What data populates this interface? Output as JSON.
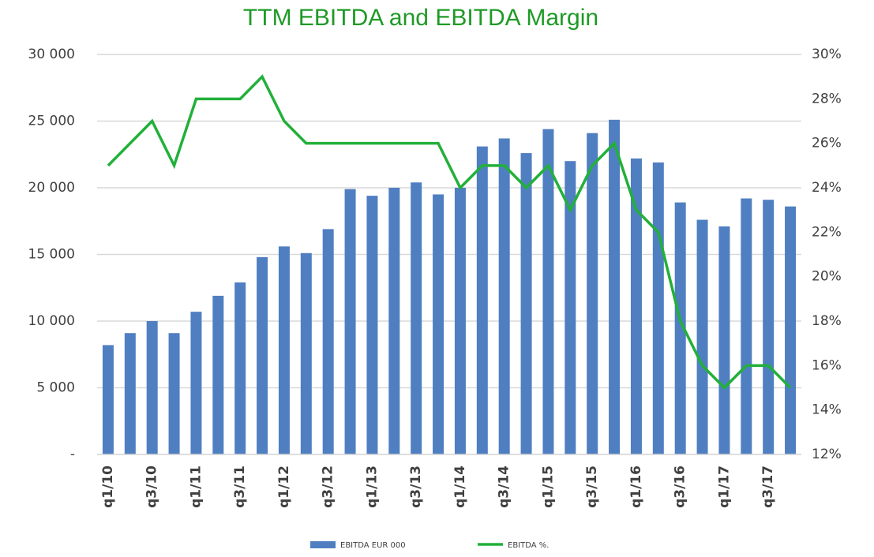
{
  "chart_data": {
    "type": "bar-line",
    "title": "TTM EBITDA and  EBITDA Margin",
    "categories": [
      "q1/10",
      null,
      "q3/10",
      null,
      "q1/11",
      null,
      "q3/11",
      null,
      "q1/12",
      null,
      "q3/12",
      null,
      "q1/13",
      null,
      "q3/13",
      null,
      "q1/14",
      null,
      "q3/14",
      null,
      "q1/15",
      null,
      "q3/15",
      null,
      "q1/16",
      null,
      "q3/16",
      null,
      "q1/17",
      null,
      "q3/17",
      null
    ],
    "series": [
      {
        "name": "EBITDA EUR 000",
        "type": "bar",
        "color": "#4f7fc1",
        "values": [
          8200,
          9100,
          10000,
          9100,
          10700,
          11900,
          12900,
          14800,
          15600,
          15100,
          16900,
          19900,
          19400,
          20000,
          20400,
          19500,
          20000,
          23100,
          23700,
          22600,
          24400,
          22000,
          24100,
          25100,
          22200,
          21900,
          18900,
          17600,
          17100,
          19200,
          19100,
          18600
        ]
      },
      {
        "name": "EBITDA %.",
        "type": "line",
        "axis": "y2",
        "color": "#22b03a",
        "values": [
          25,
          26,
          27,
          25,
          28,
          28,
          28,
          29,
          27,
          26,
          26,
          26,
          26,
          26,
          26,
          26,
          24,
          25,
          25,
          24,
          25,
          23,
          25,
          26,
          23,
          22,
          18,
          16,
          15,
          16,
          16,
          15
        ]
      }
    ],
    "ylim": [
      0,
      30000
    ],
    "yticks": [
      {
        "value": 0,
        "label": "-"
      },
      {
        "value": 5000,
        "label": "5 000"
      },
      {
        "value": 10000,
        "label": "10 000"
      },
      {
        "value": 15000,
        "label": "15 000"
      },
      {
        "value": 20000,
        "label": "20 000"
      },
      {
        "value": 25000,
        "label": "25 000"
      },
      {
        "value": 30000,
        "label": "30 000"
      }
    ],
    "y2lim": [
      12,
      30
    ],
    "y2ticks": [
      {
        "value": 12,
        "label": "12%"
      },
      {
        "value": 14,
        "label": "14%"
      },
      {
        "value": 16,
        "label": "16%"
      },
      {
        "value": 18,
        "label": "18%"
      },
      {
        "value": 20,
        "label": "20%"
      },
      {
        "value": 22,
        "label": "22%"
      },
      {
        "value": 24,
        "label": "24%"
      },
      {
        "value": 26,
        "label": "26%"
      },
      {
        "value": 28,
        "label": "28%"
      },
      {
        "value": 30,
        "label": "30%"
      }
    ],
    "grid": true,
    "legend": "bottom"
  }
}
